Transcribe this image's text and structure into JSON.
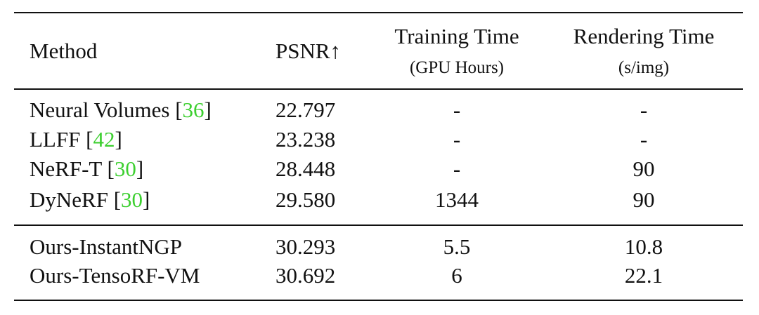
{
  "table": {
    "header": [
      [
        "Method"
      ],
      [
        "PSNR↑"
      ],
      [
        "Training Time",
        "(GPU Hours)"
      ],
      [
        "Rendering Time",
        "(s/img)"
      ]
    ],
    "rows": [
      {
        "method": [
          "Neural Volumes [",
          "36",
          "]"
        ],
        "cells": [
          "22.797",
          "-",
          "-"
        ]
      },
      {
        "method": [
          "LLFF [",
          "42",
          "]"
        ],
        "cells": [
          "23.238",
          "-",
          "-"
        ]
      },
      {
        "method": [
          "NeRF-T [",
          "30",
          "]"
        ],
        "cells": [
          "28.448",
          "-",
          "90"
        ]
      },
      {
        "method": [
          "DyNeRF [",
          "30",
          "]"
        ],
        "cells": [
          "29.580",
          "1344",
          "90"
        ]
      },
      {
        "method": [
          "Ours-InstantNGP"
        ],
        "cells": [
          "30.293",
          "5.5",
          "10.8"
        ]
      },
      {
        "method": [
          "Ours-TensoRF-VM"
        ],
        "cells": [
          "30.692",
          "6",
          "22.1"
        ]
      }
    ]
  }
}
